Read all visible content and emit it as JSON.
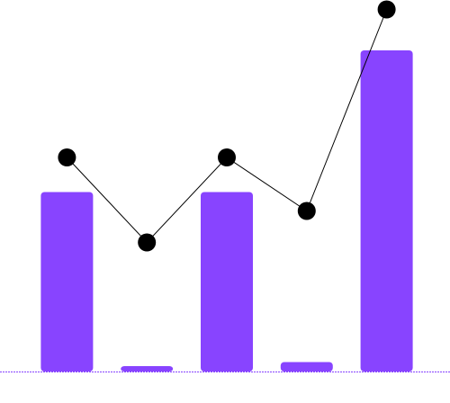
{
  "colors": {
    "bar": "#8844ff",
    "line": "#000000",
    "marker": "#000000",
    "baseline": "#8844ff",
    "background": "#ffffff"
  },
  "chart_data": {
    "type": "bar",
    "categories": [
      "",
      "",
      "",
      "",
      ""
    ],
    "series": [
      {
        "type": "bar",
        "values": [
          57,
          1,
          57,
          3,
          102
        ]
      },
      {
        "type": "line",
        "values": [
          68,
          41,
          68,
          51,
          115
        ]
      }
    ],
    "title": "",
    "xlabel": "",
    "ylabel": "",
    "ylim": [
      0,
      118
    ],
    "grid": false,
    "legend": "none"
  }
}
